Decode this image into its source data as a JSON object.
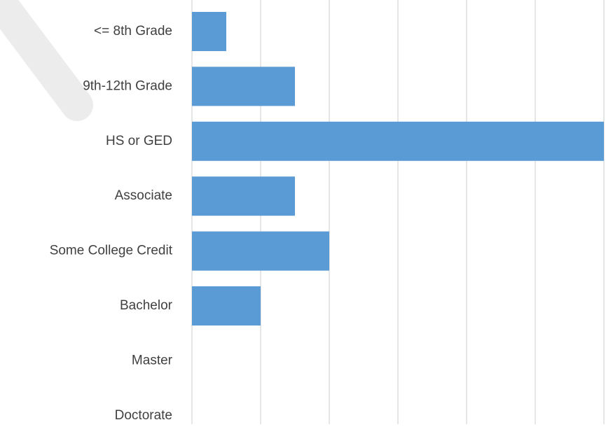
{
  "chart_data": {
    "type": "barh",
    "categories": [
      "<= 8th Grade",
      "9th-12th Grade",
      "HS or GED",
      "Associate",
      "Some College Credit",
      "Bachelor",
      "Master",
      "Doctorate"
    ],
    "values": [
      0.5,
      1.5,
      6,
      1.5,
      2,
      1,
      0,
      0
    ],
    "color": "#5b9bd5",
    "xlim": [
      0,
      6
    ],
    "xticks": [
      0,
      1,
      2,
      3,
      4,
      5,
      6
    ],
    "grid": true
  }
}
